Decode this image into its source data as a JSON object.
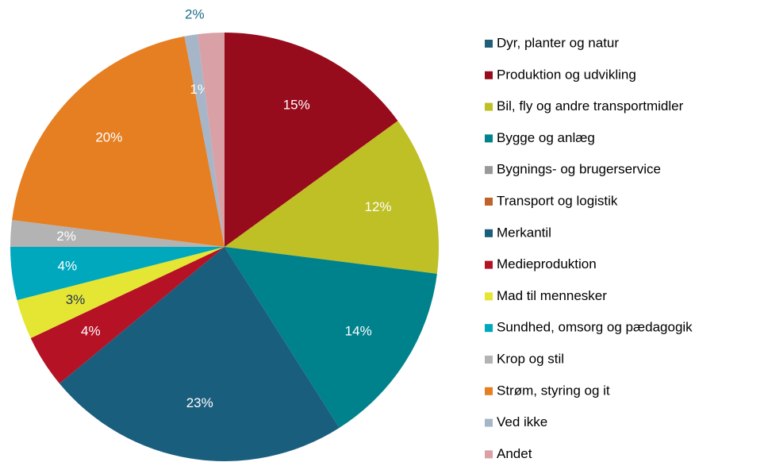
{
  "chart_data": {
    "type": "pie",
    "categories": [
      "Dyr, planter og natur",
      "Produktion og udvikling",
      "Bil, fly og andre transportmidler",
      "Bygge og anlæg",
      "Bygnings- og brugerservice",
      "Transport og logistik",
      "Merkantil",
      "Medieproduktion",
      "Mad til mennesker",
      "Sundhed, omsorg og pædagogik",
      "Krop og stil",
      "Strøm, styring og it",
      "Ved ikke",
      "Andet"
    ],
    "values": [
      0,
      15,
      12,
      14,
      0,
      0,
      23,
      4,
      3,
      4,
      2,
      20,
      1,
      2
    ],
    "value_labels": [
      null,
      "15%",
      "12%",
      "14%",
      null,
      null,
      "23%",
      "4%",
      "3%",
      "4%",
      "2%",
      "20%",
      "1%",
      "2%"
    ],
    "colors": [
      "#215f78",
      "#960c1c",
      "#bfbf26",
      "#00828c",
      "#999999",
      "#c0632a",
      "#1a5e7e",
      "#b51225",
      "#e5e533",
      "#00a8bd",
      "#b3b3b3",
      "#e67e22",
      "#a6b6c8",
      "#d9a0a6"
    ],
    "legend": "right"
  }
}
